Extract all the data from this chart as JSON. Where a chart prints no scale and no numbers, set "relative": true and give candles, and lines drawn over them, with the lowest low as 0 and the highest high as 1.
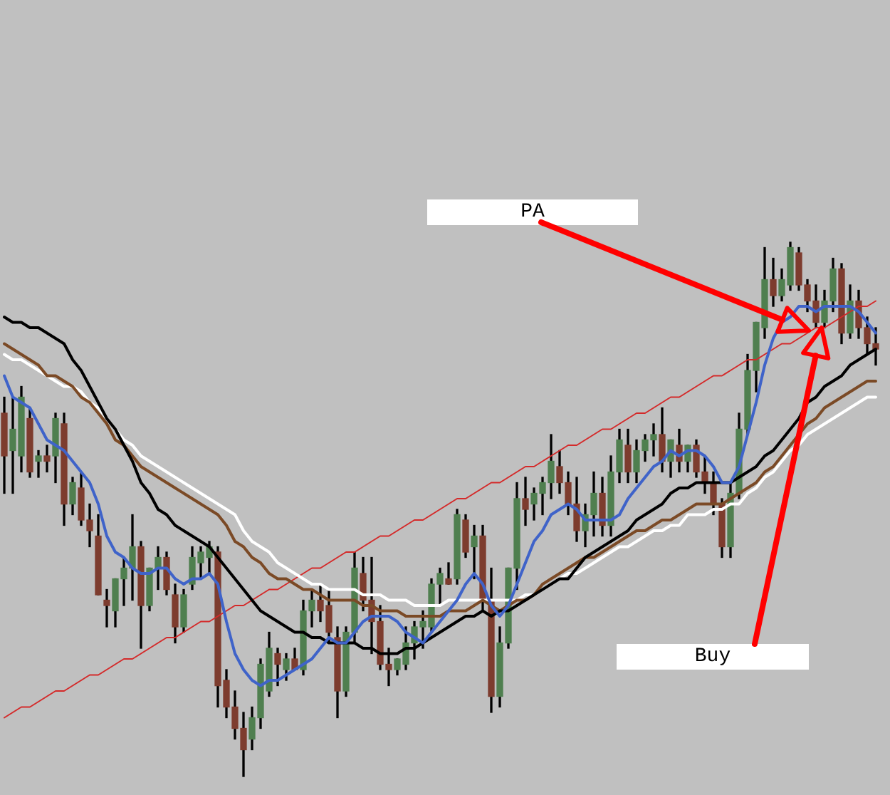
{
  "chart_data": {
    "type": "candlestick",
    "relative": true,
    "categories": [
      null,
      null,
      null,
      null,
      null,
      null,
      null,
      null,
      null,
      null,
      null,
      null,
      null,
      null,
      null,
      null,
      null,
      null,
      null,
      null,
      null,
      null,
      null,
      null,
      null,
      null,
      null,
      null,
      null,
      null,
      null,
      null,
      null,
      null,
      null,
      null,
      null,
      null,
      null,
      null,
      null,
      null,
      null,
      null,
      null,
      null,
      null,
      null,
      null,
      null,
      null,
      null,
      null,
      null,
      null,
      null,
      null,
      null,
      null,
      null,
      null,
      null,
      null,
      null,
      null,
      null,
      null,
      null,
      null,
      null,
      null,
      null,
      null,
      null,
      null,
      null,
      null,
      null,
      null,
      null,
      null,
      null,
      null,
      null,
      null,
      null,
      null,
      null,
      null,
      null,
      null,
      null,
      null,
      null,
      null,
      null,
      null,
      null,
      null,
      null,
      null,
      null,
      null
    ],
    "ohlc": [
      [
        0.68,
        0.71,
        0.53,
        0.6
      ],
      [
        0.61,
        0.71,
        0.53,
        0.65
      ],
      [
        0.6,
        0.73,
        0.57,
        0.71
      ],
      [
        0.67,
        0.69,
        0.56,
        0.57
      ],
      [
        0.59,
        0.61,
        0.56,
        0.6
      ],
      [
        0.6,
        0.62,
        0.57,
        0.59
      ],
      [
        0.6,
        0.68,
        0.55,
        0.67
      ],
      [
        0.66,
        0.68,
        0.47,
        0.51
      ],
      [
        0.51,
        0.56,
        0.49,
        0.55
      ],
      [
        0.54,
        0.57,
        0.47,
        0.48
      ],
      [
        0.48,
        0.51,
        0.43,
        0.46
      ],
      [
        0.45,
        0.49,
        0.34,
        0.34
      ],
      [
        0.33,
        0.35,
        0.28,
        0.32
      ],
      [
        0.31,
        0.37,
        0.28,
        0.37
      ],
      [
        0.37,
        0.41,
        0.32,
        0.39
      ],
      [
        0.39,
        0.49,
        0.33,
        0.43
      ],
      [
        0.43,
        0.44,
        0.24,
        0.32
      ],
      [
        0.32,
        0.39,
        0.31,
        0.39
      ],
      [
        0.39,
        0.43,
        0.35,
        0.41
      ],
      [
        0.41,
        0.42,
        0.34,
        0.35
      ],
      [
        0.34,
        0.36,
        0.25,
        0.28
      ],
      [
        0.28,
        0.35,
        0.27,
        0.34
      ],
      [
        0.36,
        0.43,
        0.35,
        0.41
      ],
      [
        0.4,
        0.43,
        0.37,
        0.42
      ],
      [
        0.41,
        0.44,
        0.38,
        0.43
      ],
      [
        0.42,
        0.43,
        0.13,
        0.17
      ],
      [
        0.18,
        0.2,
        0.11,
        0.13
      ],
      [
        0.13,
        0.16,
        0.07,
        0.09
      ],
      [
        0.09,
        0.12,
        0,
        0.05
      ],
      [
        0.07,
        0.13,
        0.05,
        0.11
      ],
      [
        0.11,
        0.22,
        0.09,
        0.21
      ],
      [
        0.16,
        0.27,
        0.15,
        0.24
      ],
      [
        0.23,
        0.24,
        0.17,
        0.21
      ],
      [
        0.2,
        0.23,
        0.18,
        0.22
      ],
      [
        0.22,
        0.24,
        0.2,
        0.2
      ],
      [
        0.2,
        0.33,
        0.19,
        0.31
      ],
      [
        0.31,
        0.35,
        0.28,
        0.33
      ],
      [
        0.33,
        0.36,
        0.29,
        0.31
      ],
      [
        0.32,
        0.35,
        0.25,
        0.27
      ],
      [
        0.26,
        0.28,
        0.11,
        0.16
      ],
      [
        0.16,
        0.28,
        0.15,
        0.27
      ],
      [
        0.27,
        0.42,
        0.25,
        0.39
      ],
      [
        0.38,
        0.41,
        0.31,
        0.33
      ],
      [
        0.33,
        0.41,
        0.23,
        0.29
      ],
      [
        0.29,
        0.32,
        0.2,
        0.21
      ],
      [
        0.21,
        0.24,
        0.17,
        0.2
      ],
      [
        0.2,
        0.22,
        0.19,
        0.22
      ],
      [
        0.21,
        0.28,
        0.2,
        0.25
      ],
      [
        0.25,
        0.29,
        0.22,
        0.28
      ],
      [
        0.28,
        0.31,
        0.24,
        0.29
      ],
      [
        0.28,
        0.37,
        0.27,
        0.36
      ],
      [
        0.36,
        0.39,
        0.32,
        0.38
      ],
      [
        0.37,
        0.4,
        0.36,
        0.36
      ],
      [
        0.37,
        0.5,
        0.36,
        0.49
      ],
      [
        0.48,
        0.49,
        0.41,
        0.42
      ],
      [
        0.43,
        0.47,
        0.37,
        0.45
      ],
      [
        0.45,
        0.47,
        0.31,
        0.33
      ],
      [
        0.33,
        0.39,
        0.12,
        0.15
      ],
      [
        0.15,
        0.28,
        0.13,
        0.25
      ],
      [
        0.25,
        0.39,
        0.24,
        0.39
      ],
      [
        0.39,
        0.55,
        0.35,
        0.52
      ],
      [
        0.52,
        0.56,
        0.47,
        0.5
      ],
      [
        0.51,
        0.54,
        0.48,
        0.53
      ],
      [
        0.53,
        0.56,
        0.49,
        0.55
      ],
      [
        0.55,
        0.64,
        0.52,
        0.59
      ],
      [
        0.58,
        0.61,
        0.53,
        0.55
      ],
      [
        0.55,
        0.57,
        0.49,
        0.51
      ],
      [
        0.51,
        0.56,
        0.44,
        0.46
      ],
      [
        0.46,
        0.51,
        0.43,
        0.49
      ],
      [
        0.49,
        0.57,
        0.45,
        0.53
      ],
      [
        0.53,
        0.56,
        0.45,
        0.47
      ],
      [
        0.47,
        0.6,
        0.45,
        0.57
      ],
      [
        0.57,
        0.65,
        0.55,
        0.63
      ],
      [
        0.62,
        0.65,
        0.55,
        0.57
      ],
      [
        0.57,
        0.63,
        0.55,
        0.61
      ],
      [
        0.61,
        0.64,
        0.59,
        0.63
      ],
      [
        0.63,
        0.66,
        0.6,
        0.64
      ],
      [
        0.64,
        0.69,
        0.57,
        0.59
      ],
      [
        0.59,
        0.63,
        0.56,
        0.63
      ],
      [
        0.62,
        0.65,
        0.57,
        0.59
      ],
      [
        0.59,
        0.62,
        0.57,
        0.62
      ],
      [
        0.62,
        0.63,
        0.56,
        0.57
      ],
      [
        0.57,
        0.6,
        0.53,
        0.55
      ],
      [
        0.55,
        0.57,
        0.49,
        0.51
      ],
      [
        0.51,
        0.52,
        0.41,
        0.43
      ],
      [
        0.43,
        0.55,
        0.41,
        0.53
      ],
      [
        0.53,
        0.68,
        0.52,
        0.65
      ],
      [
        0.65,
        0.79,
        0.64,
        0.76
      ],
      [
        0.76,
        0.85,
        0.72,
        0.85
      ],
      [
        0.84,
        0.99,
        0.82,
        0.93
      ],
      [
        0.93,
        0.97,
        0.88,
        0.9
      ],
      [
        0.9,
        0.95,
        0.89,
        0.93
      ],
      [
        0.92,
        1,
        0.91,
        0.99
      ],
      [
        0.98,
        0.99,
        0.91,
        0.92
      ],
      [
        0.92,
        0.93,
        0.87,
        0.89
      ],
      [
        0.89,
        0.92,
        0.84,
        0.85
      ],
      [
        0.85,
        0.91,
        0.84,
        0.89
      ],
      [
        0.89,
        0.97,
        0.87,
        0.95
      ],
      [
        0.95,
        0.96,
        0.81,
        0.83
      ],
      [
        0.83,
        0.92,
        0.82,
        0.89
      ],
      [
        0.89,
        0.91,
        0.82,
        0.84
      ],
      [
        0.84,
        0.86,
        0.79,
        0.81
      ],
      [
        0.81,
        0.84,
        0.77,
        0.8
      ]
    ],
    "colors": [
      "#7d3c2e",
      "#4f7f4f",
      "#4f7f4f",
      "#7d3c2e",
      "#4f7f4f",
      "#7d3c2e",
      "#4f7f4f",
      "#7d3c2e",
      "#4f7f4f",
      "#7d3c2e",
      "#7d3c2e",
      "#7d3c2e",
      "#7d3c2e",
      "#4f7f4f",
      "#4f7f4f",
      "#4f7f4f",
      "#7d3c2e",
      "#4f7f4f",
      "#4f7f4f",
      "#7d3c2e",
      "#7d3c2e",
      "#4f7f4f",
      "#4f7f4f",
      "#4f7f4f",
      "#4f7f4f",
      "#7d3c2e",
      "#7d3c2e",
      "#7d3c2e",
      "#7d3c2e",
      "#4f7f4f",
      "#4f7f4f",
      "#4f7f4f",
      "#7d3c2e",
      "#4f7f4f",
      "#7d3c2e",
      "#4f7f4f",
      "#4f7f4f",
      "#7d3c2e",
      "#7d3c2e",
      "#7d3c2e",
      "#4f7f4f",
      "#4f7f4f",
      "#7d3c2e",
      "#7d3c2e",
      "#7d3c2e",
      "#7d3c2e",
      "#4f7f4f",
      "#4f7f4f",
      "#4f7f4f",
      "#4f7f4f",
      "#4f7f4f",
      "#4f7f4f",
      "#7d3c2e",
      "#4f7f4f",
      "#7d3c2e",
      "#4f7f4f",
      "#7d3c2e",
      "#7d3c2e",
      "#4f7f4f",
      "#4f7f4f",
      "#4f7f4f",
      "#7d3c2e",
      "#4f7f4f",
      "#4f7f4f",
      "#4f7f4f",
      "#7d3c2e",
      "#7d3c2e",
      "#7d3c2e",
      "#4f7f4f",
      "#4f7f4f",
      "#7d3c2e",
      "#4f7f4f",
      "#4f7f4f",
      "#7d3c2e",
      "#4f7f4f",
      "#4f7f4f",
      "#4f7f4f",
      "#7d3c2e",
      "#4f7f4f",
      "#7d3c2e",
      "#4f7f4f",
      "#7d3c2e",
      "#7d3c2e",
      "#7d3c2e",
      "#7d3c2e",
      "#4f7f4f",
      "#4f7f4f",
      "#4f7f4f",
      "#4f7f4f",
      "#4f7f4f",
      "#7d3c2e",
      "#4f7f4f",
      "#4f7f4f",
      "#7d3c2e",
      "#7d3c2e",
      "#7d3c2e",
      "#4f7f4f",
      "#4f7f4f",
      "#7d3c2e",
      "#4f7f4f",
      "#7d3c2e",
      "#7d3c2e",
      "#7d3c2e"
    ],
    "series": [
      {
        "type": "line",
        "color": "#3f63c9",
        "values": [
          0.75,
          0.71,
          0.7,
          0.69,
          0.66,
          0.63,
          0.62,
          0.61,
          0.59,
          0.57,
          0.55,
          0.51,
          0.45,
          0.42,
          0.41,
          0.39,
          0.38,
          0.38,
          0.39,
          0.39,
          0.37,
          0.36,
          0.37,
          0.37,
          0.38,
          0.36,
          0.29,
          0.23,
          0.2,
          0.18,
          0.17,
          0.18,
          0.18,
          0.19,
          0.2,
          0.21,
          0.22,
          0.24,
          0.26,
          0.25,
          0.25,
          0.27,
          0.29,
          0.3,
          0.3,
          0.3,
          0.29,
          0.27,
          0.26,
          0.25,
          0.27,
          0.29,
          0.31,
          0.33,
          0.36,
          0.38,
          0.36,
          0.32,
          0.3,
          0.32,
          0.36,
          0.4,
          0.44,
          0.46,
          0.49,
          0.5,
          0.51,
          0.5,
          0.48,
          0.48,
          0.48,
          0.48,
          0.49,
          0.52,
          0.54,
          0.56,
          0.58,
          0.59,
          0.61,
          0.6,
          0.61,
          0.61,
          0.6,
          0.58,
          0.55,
          0.55,
          0.58,
          0.64,
          0.7,
          0.77,
          0.82,
          0.85,
          0.86,
          0.88,
          0.88,
          0.87,
          0.88,
          0.88,
          0.88,
          0.88,
          0.87,
          0.85,
          0.83
        ]
      },
      {
        "type": "line",
        "color": "#000000",
        "values": [
          0.86,
          0.85,
          0.85,
          0.84,
          0.84,
          0.83,
          0.82,
          0.81,
          0.78,
          0.76,
          0.73,
          0.7,
          0.67,
          0.65,
          0.62,
          0.59,
          0.55,
          0.53,
          0.5,
          0.49,
          0.47,
          0.46,
          0.45,
          0.44,
          0.43,
          0.41,
          0.39,
          0.37,
          0.35,
          0.33,
          0.31,
          0.3,
          0.29,
          0.28,
          0.27,
          0.27,
          0.26,
          0.26,
          0.25,
          0.25,
          0.25,
          0.25,
          0.24,
          0.24,
          0.23,
          0.23,
          0.23,
          0.24,
          0.24,
          0.25,
          0.26,
          0.27,
          0.28,
          0.29,
          0.3,
          0.3,
          0.31,
          0.3,
          0.31,
          0.31,
          0.32,
          0.33,
          0.34,
          0.35,
          0.36,
          0.37,
          0.37,
          0.39,
          0.41,
          0.42,
          0.43,
          0.44,
          0.45,
          0.46,
          0.48,
          0.49,
          0.5,
          0.51,
          0.53,
          0.54,
          0.54,
          0.55,
          0.55,
          0.55,
          0.55,
          0.55,
          0.56,
          0.57,
          0.58,
          0.6,
          0.61,
          0.63,
          0.65,
          0.67,
          0.7,
          0.71,
          0.73,
          0.74,
          0.75,
          0.77,
          0.78,
          0.79,
          0.8
        ]
      },
      {
        "type": "line",
        "color": "#7b4a26",
        "values": [
          0.81,
          0.8,
          0.79,
          0.78,
          0.77,
          0.75,
          0.75,
          0.74,
          0.73,
          0.71,
          0.7,
          0.68,
          0.66,
          0.63,
          0.62,
          0.6,
          0.58,
          0.57,
          0.56,
          0.55,
          0.54,
          0.53,
          0.52,
          0.51,
          0.5,
          0.49,
          0.47,
          0.44,
          0.43,
          0.41,
          0.4,
          0.38,
          0.37,
          0.37,
          0.36,
          0.35,
          0.35,
          0.34,
          0.33,
          0.33,
          0.33,
          0.33,
          0.32,
          0.32,
          0.31,
          0.31,
          0.31,
          0.3,
          0.3,
          0.3,
          0.3,
          0.3,
          0.31,
          0.31,
          0.31,
          0.32,
          0.33,
          0.32,
          0.31,
          0.32,
          0.33,
          0.33,
          0.34,
          0.36,
          0.37,
          0.38,
          0.39,
          0.4,
          0.41,
          0.41,
          0.42,
          0.43,
          0.44,
          0.45,
          0.46,
          0.46,
          0.47,
          0.48,
          0.48,
          0.49,
          0.5,
          0.51,
          0.51,
          0.51,
          0.51,
          0.52,
          0.53,
          0.54,
          0.55,
          0.57,
          0.58,
          0.6,
          0.62,
          0.64,
          0.66,
          0.67,
          0.69,
          0.7,
          0.71,
          0.72,
          0.73,
          0.74,
          0.74
        ]
      },
      {
        "type": "line",
        "color": "#ffffff",
        "values": [
          0.79,
          0.78,
          0.78,
          0.77,
          0.76,
          0.75,
          0.74,
          0.73,
          0.73,
          0.72,
          0.7,
          0.69,
          0.67,
          0.65,
          0.63,
          0.62,
          0.6,
          0.59,
          0.58,
          0.57,
          0.56,
          0.55,
          0.54,
          0.53,
          0.52,
          0.51,
          0.5,
          0.49,
          0.46,
          0.44,
          0.43,
          0.42,
          0.4,
          0.39,
          0.38,
          0.37,
          0.36,
          0.36,
          0.35,
          0.35,
          0.35,
          0.35,
          0.34,
          0.34,
          0.34,
          0.33,
          0.33,
          0.33,
          0.32,
          0.32,
          0.32,
          0.32,
          0.33,
          0.33,
          0.33,
          0.33,
          0.33,
          0.33,
          0.33,
          0.33,
          0.33,
          0.34,
          0.34,
          0.35,
          0.36,
          0.37,
          0.38,
          0.38,
          0.39,
          0.4,
          0.41,
          0.42,
          0.43,
          0.43,
          0.44,
          0.45,
          0.46,
          0.46,
          0.47,
          0.47,
          0.49,
          0.49,
          0.49,
          0.5,
          0.5,
          0.51,
          0.51,
          0.53,
          0.54,
          0.56,
          0.57,
          0.59,
          0.61,
          0.62,
          0.64,
          0.65,
          0.66,
          0.67,
          0.68,
          0.69,
          0.7,
          0.71,
          0.71
        ]
      },
      {
        "type": "line",
        "color": "#d42a2a",
        "values": [
          0.11,
          0.12,
          0.13,
          0.13,
          0.14,
          0.15,
          0.16,
          0.16,
          0.17,
          0.18,
          0.19,
          0.19,
          0.2,
          0.21,
          0.22,
          0.22,
          0.23,
          0.24,
          0.25,
          0.26,
          0.26,
          0.27,
          0.28,
          0.29,
          0.29,
          0.3,
          0.31,
          0.32,
          0.32,
          0.33,
          0.34,
          0.35,
          0.35,
          0.36,
          0.37,
          0.38,
          0.39,
          0.39,
          0.4,
          0.41,
          0.42,
          0.42,
          0.43,
          0.44,
          0.45,
          0.45,
          0.46,
          0.47,
          0.48,
          0.48,
          0.49,
          0.5,
          0.51,
          0.52,
          0.52,
          0.53,
          0.54,
          0.55,
          0.55,
          0.56,
          0.57,
          0.58,
          0.58,
          0.59,
          0.6,
          0.61,
          0.62,
          0.62,
          0.63,
          0.64,
          0.65,
          0.65,
          0.66,
          0.67,
          0.68,
          0.68,
          0.69,
          0.7,
          0.71,
          0.71,
          0.72,
          0.73,
          0.74,
          0.75,
          0.75,
          0.76,
          0.77,
          0.78,
          0.78,
          0.79,
          0.8,
          0.81,
          0.81,
          0.82,
          0.83,
          0.84,
          0.84,
          0.85,
          0.86,
          0.87,
          0.88,
          0.88,
          0.89
        ]
      }
    ],
    "annotations": [
      "PA",
      "Buy"
    ]
  }
}
